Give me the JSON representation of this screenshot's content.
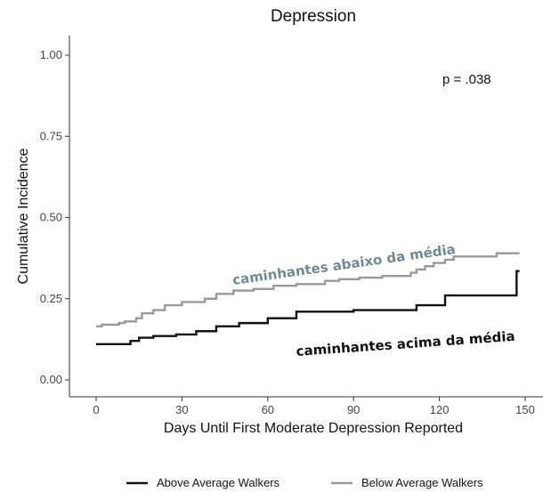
{
  "chart_data": {
    "type": "line",
    "title": "Depression",
    "xlabel": "Days Until First Moderate Depression Reported",
    "ylabel": "Cumulative Incidence",
    "xlim": [
      0,
      150
    ],
    "ylim": [
      0,
      1
    ],
    "x_ticks": [
      0,
      30,
      60,
      90,
      120,
      150
    ],
    "y_ticks": [
      0.0,
      0.25,
      0.5,
      0.75,
      1.0
    ],
    "x_tick_labels": [
      "0",
      "30",
      "60",
      "90",
      "120",
      "150"
    ],
    "y_tick_labels": [
      "0.00",
      "0.25",
      "0.50",
      "0.75",
      "1.00"
    ],
    "grid": false,
    "legend_position": "bottom",
    "series": [
      {
        "name": "Above Average Walkers",
        "color": "#111111",
        "step": true,
        "x": [
          0,
          12,
          15,
          20,
          28,
          35,
          42,
          50,
          60,
          70,
          90,
          112,
          122,
          147,
          148
        ],
        "y": [
          0.11,
          0.12,
          0.13,
          0.135,
          0.14,
          0.15,
          0.165,
          0.175,
          0.19,
          0.21,
          0.215,
          0.23,
          0.26,
          0.335,
          0.335
        ]
      },
      {
        "name": "Below Average Walkers",
        "color": "#999999",
        "step": true,
        "x": [
          0,
          2,
          8,
          10,
          14,
          16,
          20,
          24,
          30,
          38,
          42,
          48,
          55,
          62,
          70,
          80,
          85,
          92,
          100,
          110,
          112,
          115,
          118,
          122,
          125,
          140,
          148
        ],
        "y": [
          0.165,
          0.17,
          0.175,
          0.18,
          0.19,
          0.205,
          0.215,
          0.23,
          0.24,
          0.25,
          0.265,
          0.275,
          0.28,
          0.29,
          0.295,
          0.305,
          0.31,
          0.315,
          0.32,
          0.33,
          0.34,
          0.35,
          0.36,
          0.37,
          0.38,
          0.39,
          0.39
        ]
      }
    ],
    "annotations": {
      "p_value": "p = .038",
      "below_label": "caminhantes abaixo da média",
      "above_label": "caminhantes acima da média"
    },
    "annotation_colors": {
      "below_label": "#6e8a92",
      "above_label": "#111111"
    }
  }
}
